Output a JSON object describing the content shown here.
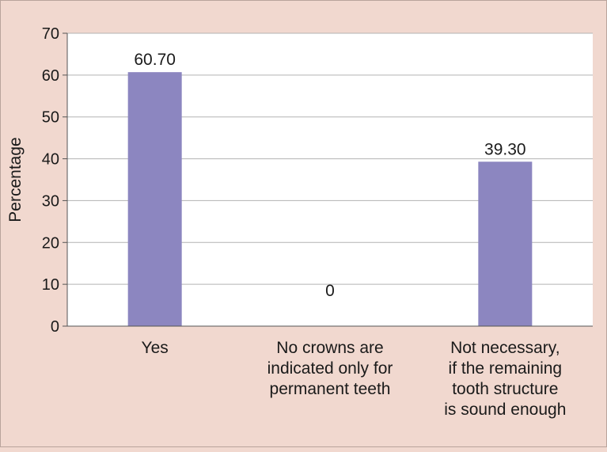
{
  "chart_data": {
    "type": "bar",
    "categories": [
      [
        "Yes"
      ],
      [
        "No crowns are",
        "indicated only for",
        "permanent teeth"
      ],
      [
        "Not necessary,",
        "if the remaining",
        "tooth structure",
        "is sound enough"
      ]
    ],
    "values": [
      60.7,
      0,
      39.3
    ],
    "value_labels": [
      "60.70",
      "0",
      "39.30"
    ],
    "ylabel": "Percentage",
    "ylim": [
      0,
      70
    ],
    "yticks": [
      0,
      10,
      20,
      30,
      40,
      50,
      60,
      70
    ],
    "grid": true,
    "bar_color": "#8c86c0",
    "plot_background": "#ffffff",
    "page_background": "#f1d8cf"
  }
}
